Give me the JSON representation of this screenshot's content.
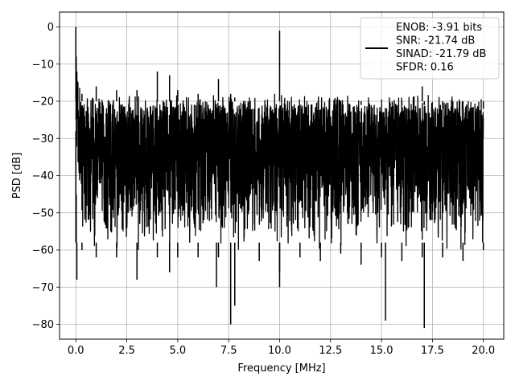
{
  "chart_data": {
    "type": "line",
    "xlabel": "Frequency [MHz]",
    "ylabel": "PSD [dB]",
    "xlim": [
      -0.8,
      21.0
    ],
    "ylim": [
      -84,
      4
    ],
    "xticks": [
      0.0,
      2.5,
      5.0,
      7.5,
      10.0,
      12.5,
      15.0,
      17.5,
      20.0
    ],
    "xtick_labels": [
      "0.0",
      "2.5",
      "5.0",
      "7.5",
      "10.0",
      "12.5",
      "15.0",
      "17.5",
      "20.0"
    ],
    "yticks": [
      0,
      -10,
      -20,
      -30,
      -40,
      -50,
      -60,
      -70,
      -80
    ],
    "ytick_labels": [
      "0",
      "−10",
      "−20",
      "−30",
      "−40",
      "−50",
      "−60",
      "−70",
      "−80"
    ],
    "grid": true,
    "legend_placement": "top-right",
    "series": [
      {
        "name": "ENOB: -3.91 bits\nSNR: -21.74 dB\nSINAD: -21.79 dB\nSFDR: 0.16",
        "color": "#000000",
        "noise_floor_top": -20,
        "noise_floor_bottom": -58,
        "x": [
          0.0,
          0.02,
          0.05,
          0.1,
          0.3,
          1.0,
          2.0,
          3.0,
          4.0,
          4.6,
          5.0,
          6.0,
          6.9,
          7.0,
          7.6,
          7.8,
          9.0,
          10.0,
          10.0,
          11.0,
          12.0,
          13.0,
          14.0,
          15.0,
          15.2,
          16.0,
          17.0,
          17.1,
          18.0,
          19.0,
          20.0
        ],
        "upper": [
          0,
          -8,
          -12,
          -15,
          -18,
          -16,
          -17,
          -17,
          -12,
          -13,
          -17,
          -18,
          -20,
          -14,
          -18,
          -19,
          -20,
          -20,
          -1,
          -20,
          -20,
          -21,
          -21,
          -20,
          -20,
          -21,
          -16,
          -21,
          -22,
          -22,
          -22
        ],
        "lower": [
          -28,
          -45,
          -68,
          -58,
          -60,
          -62,
          -62,
          -68,
          -62,
          -66,
          -62,
          -62,
          -70,
          -62,
          -80,
          -75,
          -63,
          -66,
          -70,
          -62,
          -63,
          -61,
          -64,
          -62,
          -79,
          -63,
          -62,
          -81,
          -62,
          -63,
          -60
        ]
      }
    ]
  }
}
